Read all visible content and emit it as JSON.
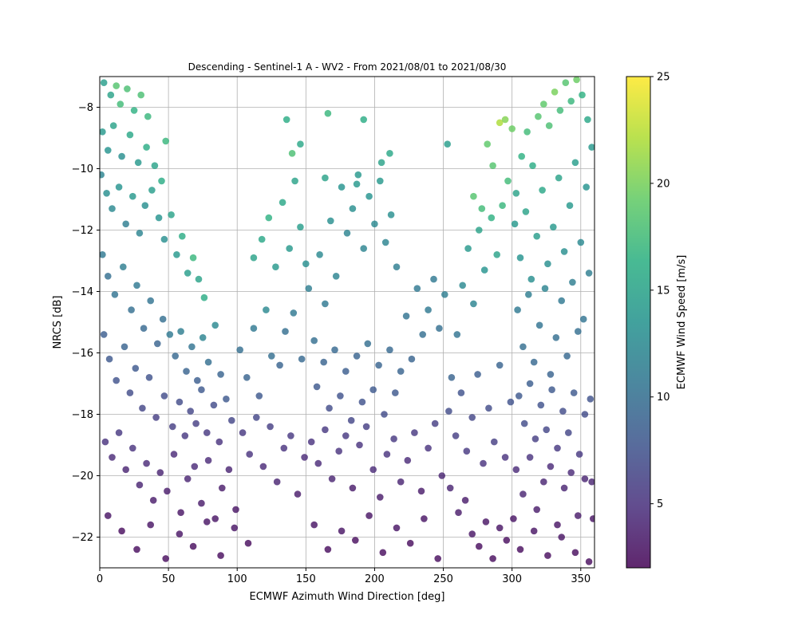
{
  "chart_data": {
    "type": "scatter",
    "title": "Descending - Sentinel-1 A - WV2 - From 2021/08/01 to 2021/08/30",
    "xlabel": "ECMWF Azimuth Wind Direction [deg]",
    "ylabel": "NRCS [dB]",
    "xlim": [
      0,
      360
    ],
    "ylim": [
      -23,
      -7
    ],
    "xticks": [
      0,
      50,
      100,
      150,
      200,
      250,
      300,
      350
    ],
    "yticks": [
      -22,
      -20,
      -18,
      -16,
      -14,
      -12,
      -10,
      -8
    ],
    "grid": true,
    "colorbar": {
      "label": "ECMWF Wind Speed [m/s]",
      "range": [
        2,
        25
      ],
      "ticks": [
        5,
        10,
        15,
        20,
        25
      ],
      "colormap": "viridis"
    },
    "point_alpha": 0.8,
    "points": [
      [
        3,
        -7.2,
        14.5
      ],
      [
        8,
        -7.6,
        15
      ],
      [
        12,
        -7.3,
        18.5
      ],
      [
        15,
        -7.9,
        17.5
      ],
      [
        20,
        -7.4,
        18
      ],
      [
        25,
        -8.1,
        16.5
      ],
      [
        30,
        -7.6,
        18
      ],
      [
        35,
        -8.3,
        17
      ],
      [
        2,
        -8.8,
        14
      ],
      [
        6,
        -9.4,
        13.5
      ],
      [
        10,
        -8.6,
        15
      ],
      [
        16,
        -9.6,
        13
      ],
      [
        22,
        -8.9,
        15.5
      ],
      [
        28,
        -9.8,
        14
      ],
      [
        34,
        -9.3,
        16
      ],
      [
        40,
        -9.9,
        15
      ],
      [
        45,
        -10.4,
        16
      ],
      [
        48,
        -9.1,
        17
      ],
      [
        1,
        -10.2,
        12
      ],
      [
        5,
        -10.8,
        13
      ],
      [
        9,
        -11.3,
        12.5
      ],
      [
        14,
        -10.6,
        13.5
      ],
      [
        19,
        -11.8,
        11.5
      ],
      [
        24,
        -10.9,
        14
      ],
      [
        29,
        -12.1,
        12
      ],
      [
        33,
        -11.2,
        13
      ],
      [
        38,
        -10.7,
        14.5
      ],
      [
        43,
        -11.6,
        13.5
      ],
      [
        47,
        -12.3,
        13
      ],
      [
        52,
        -11.5,
        15
      ],
      [
        56,
        -12.8,
        14
      ],
      [
        60,
        -12.2,
        16
      ],
      [
        64,
        -13.4,
        14.5
      ],
      [
        68,
        -12.9,
        17
      ],
      [
        72,
        -13.6,
        15
      ],
      [
        76,
        -14.2,
        16
      ],
      [
        2,
        -12.8,
        11
      ],
      [
        6,
        -13.5,
        10
      ],
      [
        11,
        -14.1,
        10.5
      ],
      [
        17,
        -13.2,
        11.5
      ],
      [
        23,
        -14.6,
        10
      ],
      [
        27,
        -13.8,
        11
      ],
      [
        32,
        -15.2,
        9.5
      ],
      [
        37,
        -14.3,
        10.5
      ],
      [
        42,
        -15.7,
        9
      ],
      [
        46,
        -14.9,
        10
      ],
      [
        51,
        -15.4,
        11
      ],
      [
        55,
        -16.1,
        9.5
      ],
      [
        59,
        -15.3,
        11.5
      ],
      [
        63,
        -16.6,
        9
      ],
      [
        67,
        -15.8,
        10.5
      ],
      [
        71,
        -16.9,
        8.5
      ],
      [
        75,
        -15.5,
        12
      ],
      [
        79,
        -16.3,
        10
      ],
      [
        84,
        -15.1,
        12.5
      ],
      [
        88,
        -16.7,
        9
      ],
      [
        3,
        -15.4,
        8.5
      ],
      [
        7,
        -16.2,
        8
      ],
      [
        12,
        -16.9,
        7.5
      ],
      [
        18,
        -15.8,
        9
      ],
      [
        22,
        -17.3,
        7
      ],
      [
        26,
        -16.5,
        8
      ],
      [
        31,
        -17.8,
        6.5
      ],
      [
        36,
        -16.8,
        7.5
      ],
      [
        41,
        -18.1,
        6
      ],
      [
        47,
        -17.4,
        7
      ],
      [
        53,
        -18.4,
        6
      ],
      [
        58,
        -17.6,
        7
      ],
      [
        62,
        -18.7,
        5.5
      ],
      [
        66,
        -17.9,
        6.5
      ],
      [
        70,
        -18.3,
        6
      ],
      [
        74,
        -17.2,
        8
      ],
      [
        78,
        -18.6,
        5.5
      ],
      [
        83,
        -17.7,
        7
      ],
      [
        87,
        -18.9,
        5
      ],
      [
        92,
        -17.5,
        8
      ],
      [
        96,
        -18.2,
        6.5
      ],
      [
        4,
        -18.9,
        5
      ],
      [
        9,
        -19.4,
        4.5
      ],
      [
        14,
        -18.6,
        5.5
      ],
      [
        19,
        -19.8,
        4
      ],
      [
        24,
        -19.1,
        5
      ],
      [
        29,
        -20.3,
        4
      ],
      [
        34,
        -19.6,
        4.5
      ],
      [
        39,
        -20.8,
        3.5
      ],
      [
        44,
        -19.9,
        4
      ],
      [
        49,
        -20.5,
        3.5
      ],
      [
        54,
        -19.3,
        4.5
      ],
      [
        59,
        -21.2,
        3
      ],
      [
        64,
        -20.1,
        4
      ],
      [
        69,
        -19.7,
        4.5
      ],
      [
        74,
        -20.9,
        3.5
      ],
      [
        79,
        -19.5,
        4.5
      ],
      [
        84,
        -21.4,
        3
      ],
      [
        89,
        -20.4,
        3.5
      ],
      [
        94,
        -19.8,
        4
      ],
      [
        99,
        -21.1,
        3
      ],
      [
        6,
        -21.3,
        3
      ],
      [
        16,
        -21.8,
        2.5
      ],
      [
        27,
        -22.4,
        2.5
      ],
      [
        37,
        -21.6,
        3
      ],
      [
        48,
        -22.7,
        2.5
      ],
      [
        58,
        -21.9,
        3
      ],
      [
        68,
        -22.3,
        2.5
      ],
      [
        78,
        -21.5,
        3
      ],
      [
        88,
        -22.6,
        2.5
      ],
      [
        98,
        -21.7,
        3
      ],
      [
        108,
        -22.2,
        2.5
      ],
      [
        102,
        -15.9,
        10
      ],
      [
        107,
        -16.8,
        9
      ],
      [
        112,
        -15.2,
        11
      ],
      [
        116,
        -17.4,
        8
      ],
      [
        121,
        -14.6,
        12.5
      ],
      [
        125,
        -16.1,
        10
      ],
      [
        118,
        -12.3,
        15.5
      ],
      [
        123,
        -11.6,
        16.5
      ],
      [
        128,
        -13.2,
        14
      ],
      [
        112,
        -12.9,
        15
      ],
      [
        133,
        -11.1,
        15.5
      ],
      [
        138,
        -12.6,
        14
      ],
      [
        142,
        -10.4,
        15
      ],
      [
        146,
        -11.9,
        14.5
      ],
      [
        150,
        -13.1,
        13
      ],
      [
        136,
        -8.4,
        16
      ],
      [
        146,
        -9.2,
        15.5
      ],
      [
        140,
        -9.5,
        18
      ],
      [
        104,
        -18.6,
        5.5
      ],
      [
        109,
        -19.3,
        5
      ],
      [
        114,
        -18.1,
        6.5
      ],
      [
        119,
        -19.7,
        4.5
      ],
      [
        124,
        -18.4,
        6
      ],
      [
        129,
        -20.2,
        4
      ],
      [
        134,
        -19.1,
        5
      ],
      [
        139,
        -18.7,
        5.5
      ],
      [
        144,
        -20.6,
        3.5
      ],
      [
        149,
        -19.4,
        4.5
      ],
      [
        131,
        -16.4,
        9
      ],
      [
        135,
        -15.3,
        10
      ],
      [
        141,
        -14.7,
        11
      ],
      [
        147,
        -16.2,
        9.5
      ],
      [
        152,
        -13.9,
        11.5
      ],
      [
        156,
        -15.6,
        10
      ],
      [
        160,
        -12.8,
        12.5
      ],
      [
        164,
        -14.4,
        11
      ],
      [
        168,
        -11.7,
        13
      ],
      [
        172,
        -13.5,
        12
      ],
      [
        176,
        -10.6,
        13.5
      ],
      [
        180,
        -12.1,
        12
      ],
      [
        184,
        -11.3,
        13
      ],
      [
        188,
        -10.2,
        14
      ],
      [
        192,
        -12.6,
        12
      ],
      [
        196,
        -10.9,
        13.5
      ],
      [
        200,
        -11.8,
        12.5
      ],
      [
        204,
        -10.4,
        14
      ],
      [
        208,
        -12.4,
        12
      ],
      [
        212,
        -11.5,
        13
      ],
      [
        216,
        -13.2,
        11.5
      ],
      [
        158,
        -17.1,
        8
      ],
      [
        163,
        -16.3,
        9
      ],
      [
        167,
        -17.8,
        7
      ],
      [
        171,
        -15.9,
        9.5
      ],
      [
        175,
        -17.4,
        7.5
      ],
      [
        179,
        -16.6,
        8.5
      ],
      [
        183,
        -18.2,
        6.5
      ],
      [
        187,
        -16.1,
        9
      ],
      [
        191,
        -17.6,
        7.5
      ],
      [
        195,
        -15.7,
        10
      ],
      [
        199,
        -17.2,
        8
      ],
      [
        203,
        -16.4,
        9
      ],
      [
        207,
        -18.0,
        7
      ],
      [
        211,
        -15.9,
        9.5
      ],
      [
        215,
        -17.3,
        8
      ],
      [
        219,
        -16.6,
        9
      ],
      [
        223,
        -14.8,
        10.5
      ],
      [
        227,
        -16.2,
        9
      ],
      [
        231,
        -13.9,
        11
      ],
      [
        235,
        -15.4,
        10
      ],
      [
        239,
        -14.6,
        11
      ],
      [
        154,
        -18.9,
        5
      ],
      [
        159,
        -19.6,
        4.5
      ],
      [
        164,
        -18.5,
        5.5
      ],
      [
        169,
        -20.1,
        4
      ],
      [
        174,
        -19.2,
        5
      ],
      [
        179,
        -18.7,
        5.5
      ],
      [
        184,
        -20.4,
        3.5
      ],
      [
        189,
        -19.0,
        5
      ],
      [
        194,
        -18.4,
        6
      ],
      [
        199,
        -19.8,
        4.5
      ],
      [
        204,
        -20.7,
        3.5
      ],
      [
        209,
        -19.3,
        5
      ],
      [
        214,
        -18.8,
        5.5
      ],
      [
        219,
        -20.2,
        4
      ],
      [
        224,
        -19.5,
        4.5
      ],
      [
        229,
        -18.6,
        5.5
      ],
      [
        234,
        -20.5,
        3.5
      ],
      [
        239,
        -19.1,
        5
      ],
      [
        244,
        -18.3,
        6
      ],
      [
        249,
        -20.0,
        4
      ],
      [
        156,
        -21.6,
        3
      ],
      [
        166,
        -22.4,
        2.5
      ],
      [
        176,
        -21.8,
        3
      ],
      [
        186,
        -22.1,
        2.5
      ],
      [
        196,
        -21.3,
        3
      ],
      [
        206,
        -22.5,
        2.5
      ],
      [
        216,
        -21.7,
        3
      ],
      [
        226,
        -22.2,
        2.5
      ],
      [
        236,
        -21.4,
        3
      ],
      [
        246,
        -22.7,
        2.5
      ],
      [
        166,
        -8.2,
        17
      ],
      [
        192,
        -8.4,
        16
      ],
      [
        253,
        -9.2,
        14.5
      ],
      [
        205,
        -9.8,
        15
      ],
      [
        211,
        -9.5,
        15.5
      ],
      [
        187,
        -10.5,
        14
      ],
      [
        164,
        -10.3,
        15
      ],
      [
        243,
        -13.6,
        11
      ],
      [
        247,
        -15.2,
        10
      ],
      [
        251,
        -14.1,
        11.5
      ],
      [
        256,
        -16.8,
        9
      ],
      [
        260,
        -15.4,
        10.5
      ],
      [
        264,
        -13.8,
        12.5
      ],
      [
        268,
        -12.6,
        14
      ],
      [
        272,
        -14.4,
        12
      ],
      [
        276,
        -12.0,
        15
      ],
      [
        280,
        -13.3,
        13.5
      ],
      [
        285,
        -11.6,
        16.5
      ],
      [
        289,
        -12.8,
        15
      ],
      [
        293,
        -11.2,
        17
      ],
      [
        297,
        -10.4,
        17.5
      ],
      [
        272,
        -10.9,
        18.5
      ],
      [
        278,
        -11.3,
        17.5
      ],
      [
        282,
        -9.2,
        19
      ],
      [
        286,
        -9.9,
        18.5
      ],
      [
        291,
        -8.5,
        22
      ],
      [
        295,
        -8.4,
        20.5
      ],
      [
        300,
        -8.7,
        19.5
      ],
      [
        254,
        -17.9,
        7
      ],
      [
        259,
        -18.7,
        6
      ],
      [
        263,
        -17.3,
        7.5
      ],
      [
        267,
        -19.2,
        5.5
      ],
      [
        271,
        -18.1,
        6.5
      ],
      [
        275,
        -16.7,
        8.5
      ],
      [
        279,
        -19.6,
        5
      ],
      [
        283,
        -17.8,
        7
      ],
      [
        287,
        -18.9,
        6
      ],
      [
        291,
        -16.4,
        9
      ],
      [
        295,
        -19.4,
        5
      ],
      [
        299,
        -17.6,
        7.5
      ],
      [
        255,
        -20.4,
        4
      ],
      [
        261,
        -21.2,
        3.5
      ],
      [
        266,
        -20.8,
        3.5
      ],
      [
        271,
        -21.9,
        3
      ],
      [
        276,
        -22.3,
        2.5
      ],
      [
        281,
        -21.5,
        3
      ],
      [
        286,
        -22.7,
        2.5
      ],
      [
        291,
        -21.7,
        3
      ],
      [
        296,
        -22.1,
        2.5
      ],
      [
        301,
        -21.4,
        3
      ],
      [
        303,
        -10.8,
        15
      ],
      [
        307,
        -9.6,
        16.5
      ],
      [
        311,
        -8.8,
        17.5
      ],
      [
        315,
        -9.9,
        16
      ],
      [
        319,
        -8.3,
        18.5
      ],
      [
        323,
        -7.9,
        19
      ],
      [
        327,
        -8.6,
        18
      ],
      [
        331,
        -7.5,
        20
      ],
      [
        335,
        -8.1,
        17.5
      ],
      [
        339,
        -7.2,
        18.5
      ],
      [
        343,
        -7.8,
        17
      ],
      [
        347,
        -7.1,
        19.5
      ],
      [
        351,
        -7.6,
        16.5
      ],
      [
        355,
        -8.4,
        15.5
      ],
      [
        302,
        -11.8,
        14
      ],
      [
        306,
        -12.9,
        13.5
      ],
      [
        310,
        -11.4,
        15
      ],
      [
        314,
        -13.6,
        13
      ],
      [
        318,
        -12.2,
        14.5
      ],
      [
        322,
        -10.7,
        15.5
      ],
      [
        326,
        -13.1,
        13
      ],
      [
        330,
        -11.9,
        14
      ],
      [
        334,
        -10.3,
        15
      ],
      [
        338,
        -12.7,
        13
      ],
      [
        342,
        -11.2,
        14
      ],
      [
        346,
        -9.8,
        14.5
      ],
      [
        350,
        -12.4,
        12.5
      ],
      [
        354,
        -10.6,
        13.5
      ],
      [
        358,
        -9.3,
        14
      ],
      [
        304,
        -14.6,
        11
      ],
      [
        308,
        -15.8,
        10
      ],
      [
        312,
        -14.1,
        11.5
      ],
      [
        316,
        -16.3,
        9.5
      ],
      [
        320,
        -15.1,
        10.5
      ],
      [
        324,
        -13.9,
        12
      ],
      [
        328,
        -16.7,
        9
      ],
      [
        332,
        -15.5,
        10
      ],
      [
        336,
        -14.3,
        11
      ],
      [
        340,
        -16.1,
        9.5
      ],
      [
        344,
        -13.7,
        11.5
      ],
      [
        348,
        -15.3,
        10
      ],
      [
        352,
        -14.9,
        10.5
      ],
      [
        356,
        -13.4,
        11.5
      ],
      [
        305,
        -17.4,
        8
      ],
      [
        309,
        -18.3,
        7
      ],
      [
        313,
        -17.0,
        8.5
      ],
      [
        317,
        -18.8,
        6
      ],
      [
        321,
        -17.7,
        7.5
      ],
      [
        325,
        -18.5,
        6.5
      ],
      [
        329,
        -17.2,
        8
      ],
      [
        333,
        -19.1,
        5.5
      ],
      [
        337,
        -17.9,
        7
      ],
      [
        341,
        -18.6,
        6.5
      ],
      [
        345,
        -17.3,
        8
      ],
      [
        349,
        -19.3,
        5.5
      ],
      [
        353,
        -18.0,
        7
      ],
      [
        357,
        -17.5,
        7.5
      ],
      [
        303,
        -19.8,
        4.5
      ],
      [
        308,
        -20.6,
        4
      ],
      [
        313,
        -19.4,
        5
      ],
      [
        318,
        -21.1,
        3.5
      ],
      [
        323,
        -20.2,
        4
      ],
      [
        328,
        -19.7,
        4.5
      ],
      [
        333,
        -21.6,
        3
      ],
      [
        338,
        -20.4,
        4
      ],
      [
        343,
        -19.9,
        4.5
      ],
      [
        348,
        -21.3,
        3.5
      ],
      [
        353,
        -20.1,
        4
      ],
      [
        358,
        -20.2,
        4
      ],
      [
        306,
        -22.4,
        2.5
      ],
      [
        316,
        -21.8,
        3
      ],
      [
        326,
        -22.6,
        2.5
      ],
      [
        336,
        -22.0,
        3
      ],
      [
        346,
        -22.5,
        2.5
      ],
      [
        356,
        -22.8,
        2.5
      ],
      [
        359,
        -21.4,
        3
      ]
    ]
  }
}
